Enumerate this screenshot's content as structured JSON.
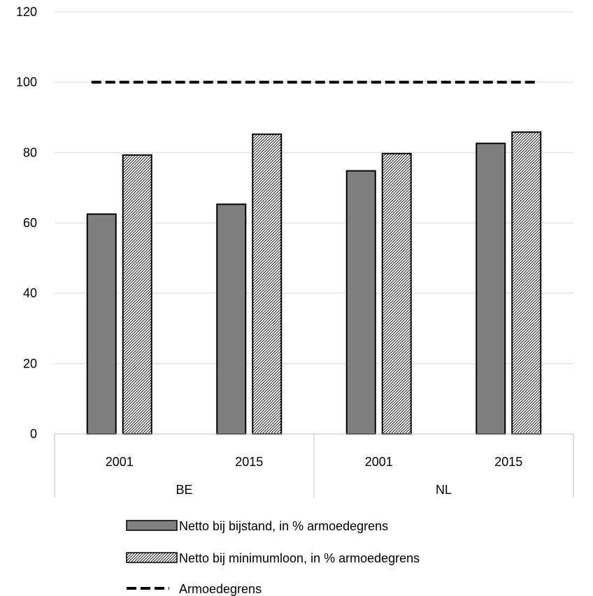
{
  "chart_data": {
    "type": "bar",
    "groups": [
      {
        "label": "BE",
        "categories": [
          "2001",
          "2015"
        ]
      },
      {
        "label": "NL",
        "categories": [
          "2001",
          "2015"
        ]
      }
    ],
    "categories": [
      "2001",
      "2015",
      "2001",
      "2015"
    ],
    "series": [
      {
        "name": "Netto bij bijstand, in % armoedegrens",
        "kind": "bar",
        "fill": "solid",
        "color": "#7f7f7f",
        "values": [
          62.5,
          65.3,
          74.8,
          82.6
        ]
      },
      {
        "name": "Netto bij minimumloon, in % armoedegrens",
        "kind": "bar",
        "fill": "hatched",
        "color": "#ffffff",
        "values": [
          79.3,
          85.2,
          79.7,
          85.8
        ]
      },
      {
        "name": "Armoedegrens",
        "kind": "line",
        "style": "dashed",
        "color": "#000000",
        "values": [
          100,
          100,
          100,
          100
        ]
      }
    ],
    "yticks": [
      0,
      20,
      40,
      60,
      80,
      100,
      120
    ],
    "ylim": [
      0,
      120
    ],
    "grid": true,
    "legend_position": "bottom"
  }
}
